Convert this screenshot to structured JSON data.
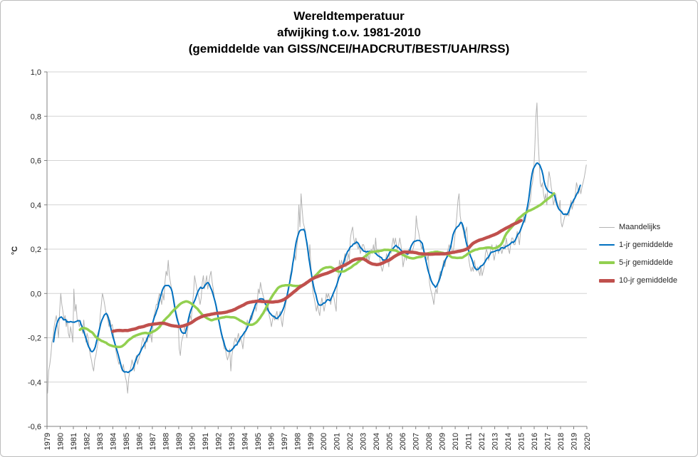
{
  "chart_data": {
    "type": "line",
    "title": {
      "line1": "Wereldtemperatuur",
      "line2": "afwijking t.o.v. 1981-2010",
      "line3": "(gemiddelde van GISS/NCEI/HADCRUT/BEST/UAH/RSS)"
    },
    "ylabel": "°C",
    "ylim": [
      -0.6,
      1.0
    ],
    "x_range": [
      1979,
      2020
    ],
    "x_ticks": [
      1979,
      1980,
      1981,
      1982,
      1983,
      1984,
      1985,
      1986,
      1987,
      1988,
      1989,
      1990,
      1991,
      1992,
      1993,
      1994,
      1995,
      1996,
      1997,
      1998,
      1999,
      2000,
      2001,
      2002,
      2003,
      2004,
      2005,
      2006,
      2007,
      2008,
      2009,
      2010,
      2011,
      2012,
      2013,
      2014,
      2015,
      2016,
      2017,
      2018,
      2019,
      2020
    ],
    "y_ticks": {
      "values": [
        1.0,
        0.8,
        0.6,
        0.4,
        0.2,
        0.0,
        -0.2,
        -0.4,
        -0.6
      ],
      "labels": [
        "1,0",
        "0,8",
        "0,6",
        "0,4",
        "0,2",
        "0,0",
        "-0,2",
        "-0,4",
        "-0,6"
      ]
    },
    "grid": "horizontal",
    "legend_position": "right",
    "series": [
      {
        "name": "Maandelijks",
        "type": "monthly",
        "color": "#b3b3b3",
        "width": 1
      },
      {
        "name": "1-jr gemiddelde",
        "type": "moving_average",
        "window_months": 12,
        "color": "#0070c0",
        "width": 2
      },
      {
        "name": "5-jr gemiddelde",
        "type": "moving_average",
        "window_months": 60,
        "color": "#92d050",
        "width": 3.5
      },
      {
        "name": "10-jr gemiddelde",
        "type": "moving_average",
        "window_months": 120,
        "color": "#c0504d",
        "width": 4.5
      }
    ],
    "monthly_start_year": 1979,
    "monthly_values": [
      -0.45,
      -0.35,
      -0.32,
      -0.28,
      -0.22,
      -0.2,
      -0.15,
      -0.12,
      -0.1,
      -0.15,
      -0.2,
      -0.08,
      0.0,
      -0.05,
      -0.08,
      -0.12,
      -0.1,
      -0.15,
      -0.12,
      -0.18,
      -0.2,
      -0.15,
      -0.18,
      -0.22,
      0.02,
      -0.08,
      -0.05,
      -0.12,
      -0.12,
      -0.15,
      -0.13,
      -0.15,
      -0.18,
      -0.12,
      -0.18,
      -0.22,
      -0.18,
      -0.2,
      -0.25,
      -0.28,
      -0.3,
      -0.33,
      -0.35,
      -0.3,
      -0.28,
      -0.25,
      -0.22,
      -0.18,
      -0.1,
      -0.05,
      0.0,
      -0.02,
      -0.05,
      -0.08,
      -0.1,
      -0.12,
      -0.15,
      -0.12,
      -0.15,
      -0.14,
      -0.18,
      -0.22,
      -0.25,
      -0.28,
      -0.3,
      -0.32,
      -0.3,
      -0.33,
      -0.35,
      -0.32,
      -0.35,
      -0.38,
      -0.4,
      -0.45,
      -0.38,
      -0.35,
      -0.33,
      -0.3,
      -0.32,
      -0.35,
      -0.3,
      -0.28,
      -0.32,
      -0.3,
      -0.28,
      -0.25,
      -0.22,
      -0.2,
      -0.22,
      -0.25,
      -0.2,
      -0.22,
      -0.18,
      -0.2,
      -0.18,
      -0.22,
      -0.15,
      -0.1,
      -0.08,
      -0.05,
      -0.05,
      -0.02,
      0.0,
      -0.02,
      -0.05,
      0.0,
      -0.03,
      0.05,
      0.1,
      0.08,
      0.15,
      0.08,
      0.05,
      0.02,
      0.0,
      -0.02,
      -0.05,
      -0.08,
      -0.1,
      -0.12,
      -0.25,
      -0.28,
      -0.22,
      -0.2,
      -0.18,
      -0.15,
      -0.18,
      -0.2,
      -0.15,
      -0.12,
      -0.1,
      -0.12,
      -0.05,
      0.0,
      0.08,
      0.05,
      0.02,
      0.0,
      -0.02,
      -0.05,
      -0.02,
      0.05,
      0.08,
      0.02,
      0.05,
      0.08,
      0.02,
      0.05,
      0.08,
      0.1,
      0.05,
      0.02,
      -0.02,
      -0.05,
      -0.08,
      -0.1,
      -0.12,
      -0.15,
      -0.18,
      -0.2,
      -0.22,
      -0.25,
      -0.25,
      -0.28,
      -0.3,
      -0.28,
      -0.25,
      -0.35,
      -0.28,
      -0.25,
      -0.22,
      -0.2,
      -0.22,
      -0.2,
      -0.18,
      -0.22,
      -0.2,
      -0.22,
      -0.25,
      -0.2,
      -0.18,
      -0.15,
      -0.12,
      -0.15,
      -0.12,
      -0.1,
      -0.12,
      -0.1,
      -0.08,
      -0.05,
      -0.08,
      -0.05,
      0.02,
      0.0,
      0.05,
      0.02,
      0.0,
      -0.02,
      -0.05,
      -0.05,
      -0.08,
      -0.05,
      -0.1,
      -0.12,
      -0.15,
      -0.12,
      -0.1,
      -0.12,
      -0.1,
      -0.08,
      -0.12,
      -0.1,
      -0.08,
      -0.12,
      -0.15,
      -0.1,
      -0.08,
      -0.05,
      -0.02,
      0.0,
      0.02,
      0.08,
      0.1,
      0.12,
      0.15,
      0.18,
      0.15,
      0.2,
      0.25,
      0.4,
      0.3,
      0.45,
      0.38,
      0.32,
      0.3,
      0.28,
      0.22,
      0.2,
      0.15,
      0.22,
      0.12,
      0.05,
      0.0,
      -0.02,
      -0.05,
      -0.08,
      -0.05,
      -0.08,
      -0.1,
      -0.05,
      -0.02,
      -0.05,
      -0.08,
      -0.05,
      0.0,
      -0.02,
      0.0,
      -0.02,
      -0.05,
      -0.02,
      0.0,
      -0.02,
      -0.05,
      -0.08,
      0.05,
      0.08,
      0.15,
      0.12,
      0.15,
      0.12,
      0.15,
      0.18,
      0.12,
      0.15,
      0.18,
      0.15,
      0.25,
      0.28,
      0.3,
      0.25,
      0.22,
      0.25,
      0.22,
      0.2,
      0.22,
      0.18,
      0.2,
      0.22,
      0.22,
      0.2,
      0.18,
      0.15,
      0.18,
      0.15,
      0.18,
      0.2,
      0.18,
      0.22,
      0.18,
      0.25,
      0.18,
      0.2,
      0.18,
      0.15,
      0.12,
      0.1,
      0.12,
      0.15,
      0.15,
      0.18,
      0.15,
      0.12,
      0.2,
      0.18,
      0.22,
      0.25,
      0.22,
      0.25,
      0.22,
      0.2,
      0.22,
      0.25,
      0.22,
      0.18,
      0.12,
      0.15,
      0.18,
      0.15,
      0.18,
      0.2,
      0.18,
      0.2,
      0.18,
      0.2,
      0.22,
      0.25,
      0.35,
      0.3,
      0.28,
      0.25,
      0.22,
      0.2,
      0.22,
      0.2,
      0.18,
      0.18,
      0.15,
      0.18,
      0.05,
      0.02,
      0.0,
      -0.02,
      -0.05,
      0.0,
      0.02,
      0.0,
      0.05,
      0.08,
      0.1,
      0.08,
      0.12,
      0.15,
      0.12,
      0.15,
      0.18,
      0.2,
      0.22,
      0.2,
      0.22,
      0.18,
      0.2,
      0.25,
      0.3,
      0.35,
      0.42,
      0.45,
      0.35,
      0.32,
      0.3,
      0.28,
      0.25,
      0.28,
      0.3,
      0.22,
      0.15,
      0.12,
      0.1,
      0.12,
      0.1,
      0.15,
      0.12,
      0.1,
      0.12,
      0.1,
      0.08,
      0.12,
      0.08,
      0.1,
      0.12,
      0.18,
      0.2,
      0.18,
      0.15,
      0.18,
      0.2,
      0.22,
      0.18,
      0.15,
      0.18,
      0.22,
      0.2,
      0.18,
      0.22,
      0.2,
      0.18,
      0.2,
      0.22,
      0.2,
      0.25,
      0.22,
      0.2,
      0.18,
      0.22,
      0.25,
      0.25,
      0.22,
      0.22,
      0.25,
      0.28,
      0.25,
      0.22,
      0.28,
      0.3,
      0.32,
      0.35,
      0.32,
      0.35,
      0.38,
      0.38,
      0.4,
      0.42,
      0.48,
      0.5,
      0.55,
      0.65,
      0.8,
      0.86,
      0.7,
      0.6,
      0.5,
      0.48,
      0.5,
      0.45,
      0.42,
      0.45,
      0.4,
      0.5,
      0.55,
      0.52,
      0.48,
      0.45,
      0.4,
      0.42,
      0.45,
      0.42,
      0.4,
      0.38,
      0.42,
      0.32,
      0.3,
      0.32,
      0.34,
      0.36,
      0.35,
      0.36,
      0.35,
      0.38,
      0.42,
      0.38,
      0.4,
      0.42,
      0.45,
      0.5,
      0.48,
      0.45,
      0.48,
      0.45,
      0.48,
      0.5,
      0.52,
      0.55,
      0.58
    ]
  }
}
